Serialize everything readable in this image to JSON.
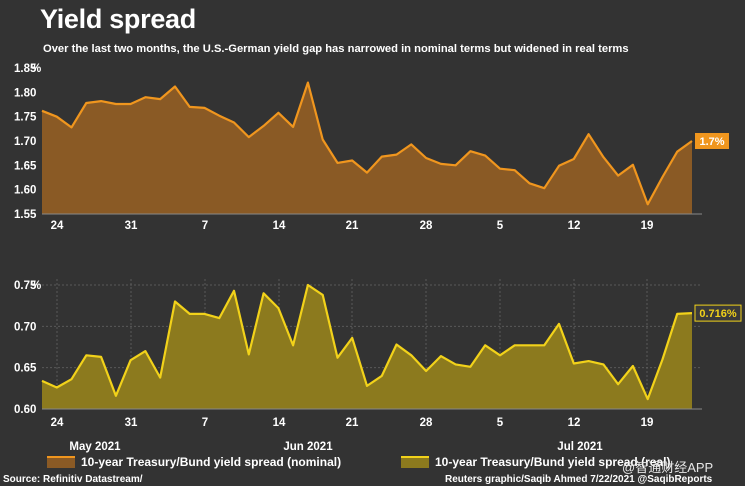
{
  "title": "Yield spread",
  "subtitle": "Over the last two months, the U.S.-German yield gap has narrowed in nominal terms but widened in real terms",
  "source": "Source: Refinitiv Datastream/",
  "credit": "Reuters graphic/Saqib Ahmed 7/22/2021 @SaqibReports",
  "watermark": "@智通财经APP",
  "colors": {
    "background": "#333333",
    "nominal_line": "#F0961E",
    "nominal_fill": "#8A5A25",
    "real_line": "#F2D21A",
    "real_fill": "#8C7A1E",
    "grid": "#5A5A5A"
  },
  "chart_data": [
    {
      "type": "area",
      "name": "10-year Treasury/Bund yield spread (nominal)",
      "unit": "%",
      "ylim": [
        1.55,
        1.85
      ],
      "yticks": [
        "1.55",
        "1.60",
        "1.65",
        "1.70",
        "1.75",
        "1.80",
        "1.85"
      ],
      "day_ticks": [
        "24",
        "31",
        "7",
        "14",
        "21",
        "28",
        "5",
        "12",
        "19"
      ],
      "month_labels": [
        "May 2021",
        "Jun 2021",
        "Jul 2021"
      ],
      "last_value_label": "1.7%",
      "grid": false,
      "values": [
        1.762,
        1.75,
        1.728,
        1.778,
        1.782,
        1.776,
        1.776,
        1.79,
        1.786,
        1.812,
        1.77,
        1.768,
        1.752,
        1.738,
        1.708,
        1.731,
        1.758,
        1.729,
        1.82,
        1.703,
        1.655,
        1.66,
        1.635,
        1.668,
        1.672,
        1.693,
        1.665,
        1.653,
        1.65,
        1.679,
        1.67,
        1.643,
        1.64,
        1.613,
        1.603,
        1.649,
        1.663,
        1.714,
        1.667,
        1.629,
        1.651,
        1.57,
        1.626,
        1.678,
        1.7
      ]
    },
    {
      "type": "area",
      "name": "10-year Treasury/Bund yield spread (real)",
      "unit": "%",
      "ylim": [
        0.6,
        0.75
      ],
      "yticks": [
        "0.60",
        "0.65",
        "0.70",
        "0.75"
      ],
      "day_ticks": [
        "24",
        "31",
        "7",
        "14",
        "21",
        "28",
        "5",
        "12",
        "19"
      ],
      "month_labels": [
        "May 2021",
        "Jun 2021",
        "Jul 2021"
      ],
      "last_value_label": "0.716%",
      "grid": true,
      "values": [
        0.634,
        0.626,
        0.636,
        0.665,
        0.663,
        0.616,
        0.659,
        0.67,
        0.638,
        0.73,
        0.715,
        0.715,
        0.71,
        0.743,
        0.666,
        0.74,
        0.722,
        0.677,
        0.75,
        0.738,
        0.662,
        0.686,
        0.628,
        0.64,
        0.678,
        0.665,
        0.646,
        0.664,
        0.654,
        0.651,
        0.677,
        0.665,
        0.677,
        0.677,
        0.677,
        0.703,
        0.655,
        0.658,
        0.654,
        0.63,
        0.652,
        0.612,
        0.66,
        0.715,
        0.716
      ]
    }
  ]
}
